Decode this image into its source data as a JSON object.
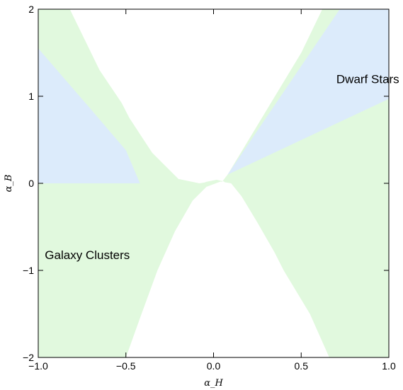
{
  "chart_data": {
    "type": "area",
    "title": "",
    "xlabel": "α_H",
    "ylabel": "α_B",
    "xlim": [
      -1.0,
      1.0
    ],
    "ylim": [
      -2,
      2
    ],
    "x_ticks": [
      "−1.0",
      "−0.5",
      "0.0",
      "0.5",
      "1.0"
    ],
    "x_tick_values": [
      -1.0,
      -0.5,
      0.0,
      0.5,
      1.0
    ],
    "y_ticks": [
      "−2",
      "−1",
      "0",
      "1",
      "2"
    ],
    "y_tick_values": [
      -2,
      -1,
      0,
      1,
      2
    ],
    "grid": false,
    "legend": "none",
    "colors": {
      "galaxy_clusters": "#e1f9de",
      "dwarf_stars": "#dcebfb",
      "excluded": "#ffffff",
      "frame": "#000000"
    },
    "regions": [
      {
        "name": "galaxy-clusters-region",
        "color_key": "galaxy_clusters",
        "points": [
          [
            -1.0,
            -2.0
          ],
          [
            -0.48,
            -2.0
          ],
          [
            -0.4,
            -1.55
          ],
          [
            -0.3,
            -1.0
          ],
          [
            -0.2,
            -0.55
          ],
          [
            -0.1,
            -0.2
          ],
          [
            0.0,
            -0.03
          ],
          [
            0.05,
            0.02
          ],
          [
            0.08,
            0.1
          ],
          [
            0.2,
            0.5
          ],
          [
            0.35,
            1.0
          ],
          [
            0.5,
            1.5
          ],
          [
            0.62,
            2.0
          ],
          [
            1.0,
            2.0
          ],
          [
            1.0,
            -2.0
          ],
          [
            0.66,
            -2.0
          ],
          [
            0.55,
            -1.5
          ],
          [
            0.4,
            -1.0
          ],
          [
            0.3,
            -0.7
          ],
          [
            0.2,
            -0.4
          ],
          [
            0.12,
            -0.15
          ],
          [
            0.06,
            0.02
          ],
          [
            0.0,
            0.05
          ],
          [
            -0.05,
            0.01
          ],
          [
            -0.08,
            0.0
          ],
          [
            -0.2,
            0.05
          ],
          [
            -0.35,
            0.35
          ],
          [
            -0.48,
            0.75
          ],
          [
            -0.62,
            1.3
          ],
          [
            -0.72,
            2.0
          ],
          [
            -1.0,
            2.0
          ]
        ]
      },
      {
        "name": "white-gap-upper-left",
        "color_key": "excluded",
        "points": [
          [
            -0.82,
            2.0
          ],
          [
            -0.65,
            1.3
          ],
          [
            -0.5,
            0.85
          ],
          [
            -0.35,
            0.45
          ],
          [
            -0.2,
            0.15
          ],
          [
            -0.06,
            0.01
          ],
          [
            0.04,
            0.05
          ],
          [
            0.08,
            0.1
          ],
          [
            0.2,
            0.5
          ],
          [
            0.35,
            1.0
          ],
          [
            0.5,
            1.5
          ],
          [
            0.62,
            2.0
          ]
        ]
      },
      {
        "name": "white-gap-lower",
        "color_key": "excluded",
        "points": [
          [
            -0.5,
            -2.0
          ],
          [
            -0.42,
            -1.55
          ],
          [
            -0.32,
            -1.0
          ],
          [
            -0.22,
            -0.55
          ],
          [
            -0.12,
            -0.2
          ],
          [
            -0.04,
            -0.04
          ],
          [
            0.04,
            0.02
          ],
          [
            0.1,
            0.0
          ],
          [
            0.16,
            -0.15
          ],
          [
            0.25,
            -0.45
          ],
          [
            0.35,
            -0.8
          ],
          [
            0.45,
            -1.2
          ],
          [
            0.56,
            -1.6
          ],
          [
            0.66,
            -2.0
          ]
        ]
      },
      {
        "name": "dwarf-stars-region-right",
        "color_key": "dwarf_stars",
        "points": [
          [
            0.08,
            0.1
          ],
          [
            0.72,
            2.0
          ],
          [
            1.0,
            2.0
          ],
          [
            1.0,
            0.97
          ]
        ]
      },
      {
        "name": "dwarf-stars-region-left",
        "color_key": "dwarf_stars",
        "points": [
          [
            -1.0,
            1.55
          ],
          [
            -0.7,
            0.85
          ],
          [
            -0.5,
            0.38
          ],
          [
            -0.42,
            0.0
          ],
          [
            -1.0,
            0.0
          ]
        ]
      }
    ],
    "annotations": [
      {
        "text": "Dwarf Stars",
        "x": 0.88,
        "y": 1.2
      },
      {
        "text": "Galaxy Clusters",
        "x": -0.72,
        "y": -0.82
      }
    ]
  }
}
